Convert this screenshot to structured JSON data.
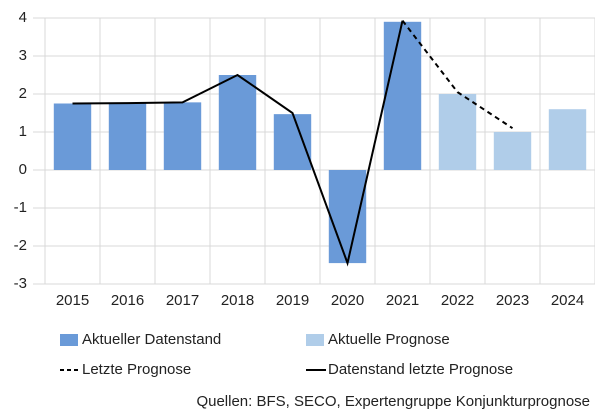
{
  "chart_data": {
    "type": "bar",
    "categories": [
      "2015",
      "2016",
      "2017",
      "2018",
      "2019",
      "2020",
      "2021",
      "2022",
      "2023",
      "2024"
    ],
    "series": [
      {
        "name": "Aktueller Datenstand",
        "type": "bar",
        "color": "#6a9ad8",
        "values": [
          1.75,
          1.75,
          1.78,
          2.5,
          1.47,
          -2.45,
          3.9,
          null,
          null,
          null
        ]
      },
      {
        "name": "Aktuelle Prognose",
        "type": "bar",
        "color": "#b0cde9",
        "values": [
          null,
          null,
          null,
          null,
          null,
          null,
          null,
          2.0,
          1.0,
          1.6
        ]
      },
      {
        "name": "Letzte Prognose",
        "type": "line",
        "dashed": true,
        "color": "#000000",
        "values": [
          null,
          null,
          null,
          null,
          null,
          null,
          3.93,
          2.05,
          1.1,
          null
        ]
      },
      {
        "name": "Datenstand letzte Prognose",
        "type": "line",
        "dashed": false,
        "color": "#000000",
        "values": [
          1.75,
          1.76,
          1.78,
          2.5,
          1.5,
          -2.45,
          3.93,
          null,
          null,
          null
        ]
      }
    ],
    "ylim": [
      -3,
      4
    ],
    "yticks": [
      -3,
      -2,
      -1,
      0,
      1,
      2,
      3,
      4
    ],
    "grid": true,
    "source": "Quellen: BFS, SECO, Expertengruppe Konjunkturprognose"
  }
}
